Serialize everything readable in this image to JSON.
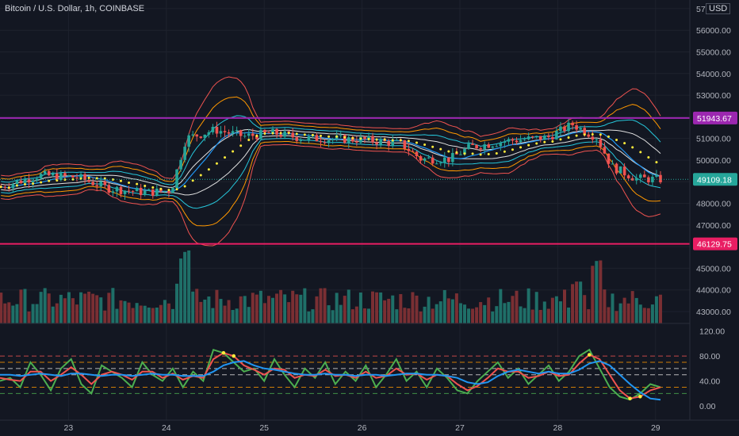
{
  "header": {
    "title": "Bitcoin / U.S. Dollar, 1h, COINBASE",
    "currency": "USD"
  },
  "colors": {
    "bg": "#131722",
    "grid": "#1e222d",
    "up": "#26a69a",
    "down": "#ef5350",
    "vol_up": "#1f6f68",
    "vol_down": "#7a2f33",
    "resistance": "#9c27b0",
    "support": "#e91e63",
    "last": "#26a69a",
    "basis_dots": "#ffeb3b",
    "rsi": "#4caf50",
    "signal": "#ef5350",
    "slow": "#2196f3"
  },
  "chart_data": [
    {
      "type": "candlestick",
      "title": "Bitcoin / U.S. Dollar, 1h, COINBASE",
      "x_ticks": [
        "23",
        "24",
        "25",
        "26",
        "27",
        "28",
        "29"
      ],
      "x_range": [
        22.3,
        29.35
      ],
      "y_ticks": [
        "57",
        "56000.00",
        "55000.00",
        "54000.00",
        "53000.00",
        "52000.00",
        "51000.00",
        "50000.00",
        "49000.00",
        "48000.00",
        "47000.00",
        "46000.00",
        "45000.00",
        "44000.00",
        "43000.00"
      ],
      "ylim": [
        42450,
        57400
      ],
      "grid": true,
      "price_path": [
        {
          "x": 22.3,
          "y": 48750
        },
        {
          "x": 22.7,
          "y": 49300
        },
        {
          "x": 23.1,
          "y": 49200
        },
        {
          "x": 23.4,
          "y": 48700
        },
        {
          "x": 23.8,
          "y": 48500
        },
        {
          "x": 24.05,
          "y": 48600
        },
        {
          "x": 24.2,
          "y": 51000
        },
        {
          "x": 24.5,
          "y": 51400
        },
        {
          "x": 24.8,
          "y": 51100
        },
        {
          "x": 25.1,
          "y": 51250
        },
        {
          "x": 25.4,
          "y": 51000
        },
        {
          "x": 26.0,
          "y": 50950
        },
        {
          "x": 26.4,
          "y": 50750
        },
        {
          "x": 26.6,
          "y": 50050
        },
        {
          "x": 26.9,
          "y": 50050
        },
        {
          "x": 27.1,
          "y": 50600
        },
        {
          "x": 27.5,
          "y": 50900
        },
        {
          "x": 27.9,
          "y": 51050
        },
        {
          "x": 28.15,
          "y": 51650
        },
        {
          "x": 28.4,
          "y": 51050
        },
        {
          "x": 28.55,
          "y": 49700
        },
        {
          "x": 28.8,
          "y": 49150
        },
        {
          "x": 29.05,
          "y": 49109.18
        }
      ],
      "volume_peaks": [
        {
          "x": 24.15,
          "v": 0.6
        },
        {
          "x": 24.2,
          "v": 1.0
        },
        {
          "x": 28.4,
          "v": 0.85
        },
        {
          "x": 28.2,
          "v": 0.55
        }
      ],
      "price_levels": [
        {
          "value": 51943.67,
          "label": "51943.67",
          "color": "#9c27b0"
        },
        {
          "value": 46129.75,
          "label": "46129.75",
          "color": "#e91e63"
        }
      ],
      "last_price": {
        "value": 49109.18,
        "label": "49109.18"
      }
    },
    {
      "type": "line",
      "y_ticks": [
        "120.00",
        "80.00",
        "40.00",
        "0.00"
      ],
      "ylim": [
        -10,
        122
      ],
      "levels": [
        80,
        70,
        60,
        50,
        30,
        20
      ],
      "series": [
        {
          "key": "rsi",
          "values": [
            40,
            45,
            30,
            70,
            50,
            25,
            60,
            75,
            35,
            20,
            65,
            55,
            45,
            30,
            70,
            50,
            40,
            60,
            30,
            55,
            40,
            90,
            85,
            70,
            55,
            60,
            40,
            75,
            50,
            30,
            60,
            45,
            70,
            35,
            55,
            40,
            65,
            30,
            50,
            75,
            40,
            55,
            30,
            60,
            45,
            25,
            20,
            40,
            55,
            70,
            45,
            60,
            35,
            50,
            65,
            40,
            55,
            80,
            90,
            60,
            30,
            15,
            10,
            20,
            35,
            30
          ]
        },
        {
          "key": "signal",
          "values": [
            45,
            42,
            40,
            55,
            55,
            40,
            50,
            62,
            50,
            35,
            50,
            55,
            50,
            42,
            55,
            55,
            45,
            52,
            42,
            48,
            45,
            75,
            85,
            80,
            65,
            58,
            50,
            60,
            58,
            45,
            50,
            48,
            58,
            48,
            50,
            45,
            55,
            45,
            48,
            60,
            50,
            52,
            42,
            50,
            48,
            35,
            25,
            32,
            45,
            60,
            55,
            55,
            45,
            48,
            55,
            48,
            50,
            68,
            82,
            75,
            50,
            25,
            12,
            15,
            25,
            30
          ]
        },
        {
          "key": "slow",
          "values": [
            50,
            50,
            48,
            50,
            52,
            50,
            48,
            52,
            52,
            50,
            48,
            50,
            50,
            48,
            50,
            52,
            50,
            50,
            48,
            48,
            48,
            55,
            65,
            70,
            72,
            65,
            60,
            58,
            55,
            52,
            50,
            50,
            52,
            50,
            50,
            48,
            50,
            50,
            48,
            50,
            52,
            52,
            50,
            50,
            48,
            45,
            38,
            35,
            38,
            48,
            55,
            58,
            55,
            52,
            55,
            52,
            52,
            58,
            68,
            72,
            65,
            50,
            35,
            22,
            12,
            10
          ]
        }
      ]
    }
  ]
}
